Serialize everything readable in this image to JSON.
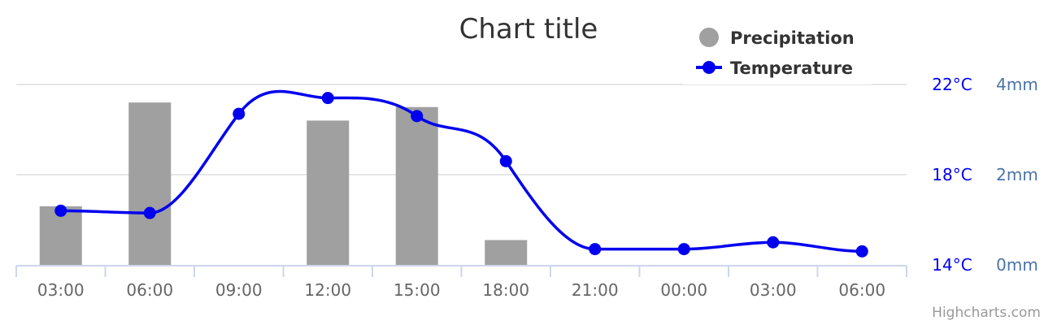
{
  "chart_data": {
    "type": "bar+line",
    "title": "Chart title",
    "categories": [
      "03:00",
      "06:00",
      "09:00",
      "12:00",
      "15:00",
      "18:00",
      "21:00",
      "00:00",
      "03:00",
      "06:00"
    ],
    "series": [
      {
        "name": "Precipitation",
        "type": "bar",
        "unit": "mm",
        "color": "#a0a0a0",
        "values": [
          1.3,
          3.6,
          0,
          3.2,
          3.5,
          0.55,
          0,
          0,
          0,
          0
        ]
      },
      {
        "name": "Temperature",
        "type": "line",
        "smooth": true,
        "unit": "°C",
        "color": "#0000ee",
        "values": [
          16.4,
          16.3,
          20.7,
          21.4,
          20.6,
          18.6,
          14.7,
          14.7,
          15.0,
          14.6
        ]
      }
    ],
    "y_axes": [
      {
        "series": "Temperature",
        "min": 14,
        "max": 22,
        "ticks": [
          14,
          18,
          22
        ],
        "tick_labels": [
          "14°C",
          "18°C",
          "22°C"
        ],
        "color": "#0000ee"
      },
      {
        "series": "Precipitation",
        "min": 0,
        "max": 4,
        "ticks": [
          0,
          2,
          4
        ],
        "tick_labels": [
          "0mm",
          "2mm",
          "4mm"
        ],
        "color": "#4a74a8"
      }
    ],
    "grid": true,
    "legend": "top-right",
    "credits": "Highcharts.com",
    "axis_color": "#ccd6eb",
    "grid_color": "#e6e6e6"
  }
}
